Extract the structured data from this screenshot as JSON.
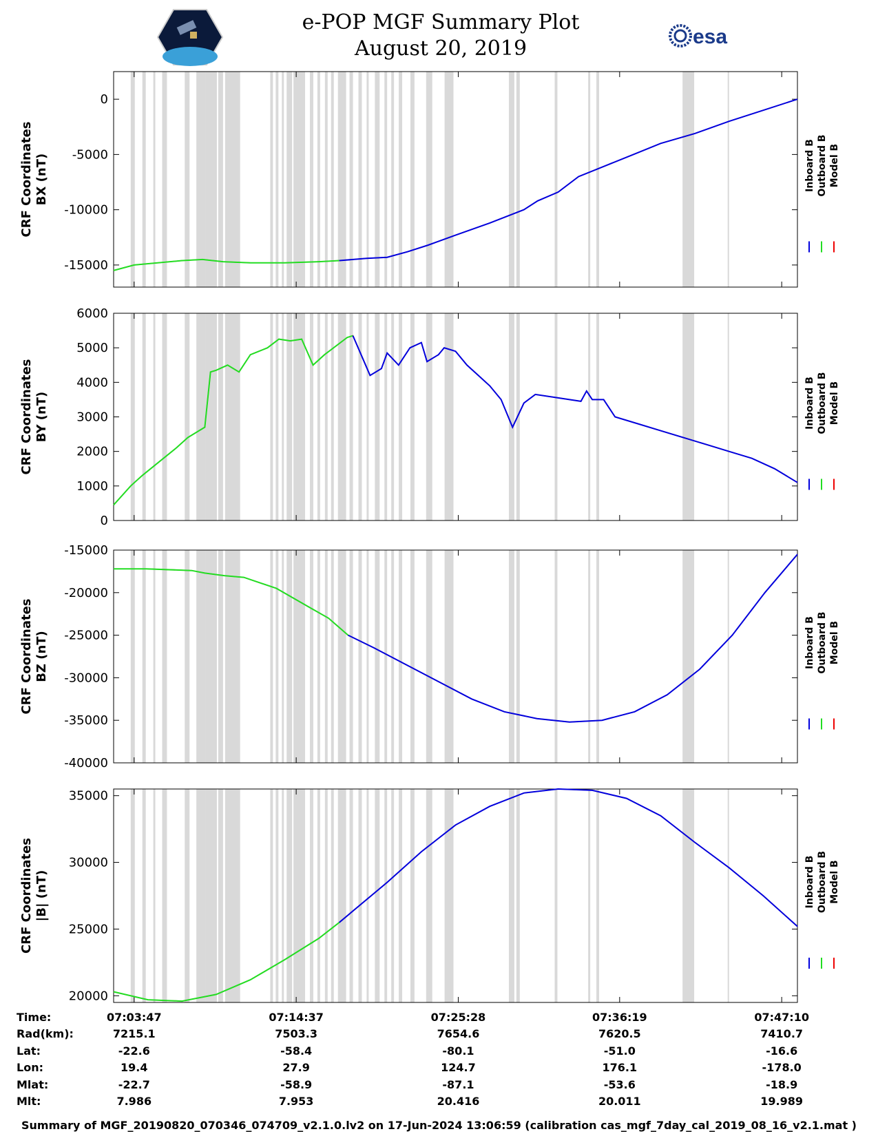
{
  "title": {
    "line1": "e-POP MGF Summary Plot",
    "line2": "August 20, 2019"
  },
  "logos": {
    "left": "cassiope-mission-logo",
    "right_text": "esa"
  },
  "colors": {
    "inboard": "#0000dd",
    "outboard": "#22dd22",
    "model": "#ee0000",
    "gap_shading": "#d9d9d9"
  },
  "legend": {
    "inboard": "Inboard B",
    "outboard": "Outboard B",
    "model": "Model B"
  },
  "chart_data": [
    {
      "type": "line",
      "id": "bx",
      "ylabel_line1": "CRF Coordinates",
      "ylabel_line2": "BX (nT)",
      "ylim": [
        -17000,
        2500
      ],
      "yticks": [
        0,
        -5000,
        -10000,
        -15000
      ],
      "ytick_labels": [
        "0",
        "-5000",
        "-10000",
        "-15000"
      ],
      "t_range": [
        0,
        1
      ]
    },
    {
      "type": "line",
      "id": "by",
      "ylabel_line1": "CRF Coordinates",
      "ylabel_line2": "BY (nT)",
      "ylim": [
        0,
        6000
      ],
      "yticks": [
        6000,
        5000,
        4000,
        3000,
        2000,
        1000,
        0
      ],
      "ytick_labels": [
        "6000",
        "5000",
        "4000",
        "3000",
        "2000",
        "1000",
        "0"
      ]
    },
    {
      "type": "line",
      "id": "bz",
      "ylabel_line1": "CRF Coordinates",
      "ylabel_line2": "BZ (nT)",
      "ylim": [
        -40000,
        -15000
      ],
      "yticks": [
        -15000,
        -20000,
        -25000,
        -30000,
        -35000,
        -40000
      ],
      "ytick_labels": [
        "-15000",
        "-20000",
        "-25000",
        "-30000",
        "-35000",
        "-40000"
      ]
    },
    {
      "type": "line",
      "id": "bmag",
      "ylabel_line1": "CRF Coordinates",
      "ylabel_line2": "|B| (nT)",
      "ylim": [
        19500,
        35500
      ],
      "yticks": [
        35000,
        30000,
        25000,
        20000
      ],
      "ytick_labels": [
        "35000",
        "30000",
        "25000",
        "20000"
      ]
    }
  ],
  "series_points": {
    "bx_outboard": [
      [
        0,
        -15500
      ],
      [
        0.03,
        -15000
      ],
      [
        0.1,
        -14600
      ],
      [
        0.13,
        -14500
      ],
      [
        0.16,
        -14700
      ],
      [
        0.2,
        -14800
      ],
      [
        0.25,
        -14800
      ],
      [
        0.3,
        -14700
      ],
      [
        0.33,
        -14600
      ]
    ],
    "bx_inboard": [
      [
        0.33,
        -14600
      ],
      [
        0.37,
        -14400
      ],
      [
        0.4,
        -14300
      ],
      [
        0.43,
        -13800
      ],
      [
        0.46,
        -13200
      ],
      [
        0.5,
        -12300
      ],
      [
        0.55,
        -11200
      ],
      [
        0.6,
        -10000
      ],
      [
        0.62,
        -9200
      ],
      [
        0.65,
        -8400
      ],
      [
        0.68,
        -7000
      ],
      [
        0.72,
        -6000
      ],
      [
        0.76,
        -5000
      ],
      [
        0.8,
        -4000
      ],
      [
        0.85,
        -3100
      ],
      [
        0.9,
        -2000
      ],
      [
        0.95,
        -1000
      ],
      [
        1,
        0
      ]
    ],
    "by_outboard": [
      [
        0,
        450
      ],
      [
        0.03,
        1000
      ],
      [
        0.05,
        1300
      ],
      [
        0.08,
        1700
      ],
      [
        0.11,
        2100
      ],
      [
        0.13,
        2400
      ],
      [
        0.16,
        2700
      ],
      [
        0.17,
        4300
      ],
      [
        0.18,
        4350
      ],
      [
        0.2,
        4500
      ],
      [
        0.22,
        4300
      ],
      [
        0.24,
        4800
      ],
      [
        0.27,
        5000
      ],
      [
        0.29,
        5250
      ],
      [
        0.31,
        5200
      ],
      [
        0.33,
        5250
      ],
      [
        0.35,
        4500
      ],
      [
        0.37,
        4800
      ],
      [
        0.41,
        5300
      ],
      [
        0.42,
        5350
      ]
    ],
    "by_inboard": [
      [
        0.42,
        5350
      ],
      [
        0.45,
        4200
      ],
      [
        0.47,
        4400
      ],
      [
        0.48,
        4850
      ],
      [
        0.5,
        4500
      ],
      [
        0.52,
        5000
      ],
      [
        0.54,
        5150
      ],
      [
        0.55,
        4600
      ],
      [
        0.57,
        4800
      ],
      [
        0.58,
        5000
      ],
      [
        0.6,
        4900
      ],
      [
        0.62,
        4500
      ],
      [
        0.64,
        4200
      ],
      [
        0.66,
        3900
      ],
      [
        0.68,
        3500
      ],
      [
        0.7,
        2700
      ],
      [
        0.72,
        3400
      ],
      [
        0.74,
        3650
      ],
      [
        0.78,
        3550
      ],
      [
        0.82,
        3450
      ],
      [
        0.83,
        3750
      ],
      [
        0.84,
        3500
      ],
      [
        0.86,
        3500
      ],
      [
        0.88,
        3000
      ],
      [
        0.92,
        2800
      ],
      [
        0.96,
        2600
      ],
      [
        1,
        2400
      ],
      [
        1.04,
        2200
      ],
      [
        1.08,
        2000
      ],
      [
        1.12,
        1800
      ],
      [
        1.16,
        1500
      ],
      [
        1.2,
        1100
      ]
    ],
    "bz_outboard": [
      [
        0,
        -17200
      ],
      [
        0.05,
        -17200
      ],
      [
        0.12,
        -17400
      ],
      [
        0.14,
        -17700
      ],
      [
        0.17,
        -18000
      ],
      [
        0.2,
        -18200
      ],
      [
        0.25,
        -19500
      ],
      [
        0.3,
        -21700
      ],
      [
        0.33,
        -23000
      ],
      [
        0.36,
        -25000
      ]
    ],
    "bz_inboard": [
      [
        0.36,
        -25000
      ],
      [
        0.4,
        -26500
      ],
      [
        0.45,
        -28500
      ],
      [
        0.5,
        -30500
      ],
      [
        0.55,
        -32500
      ],
      [
        0.6,
        -34000
      ],
      [
        0.65,
        -34800
      ],
      [
        0.7,
        -35200
      ],
      [
        0.75,
        -35000
      ],
      [
        0.8,
        -34000
      ],
      [
        0.85,
        -32000
      ],
      [
        0.9,
        -29000
      ],
      [
        0.95,
        -25000
      ],
      [
        1,
        -20000
      ],
      [
        1.05,
        -15500
      ]
    ],
    "bmag_outboard": [
      [
        0,
        20300
      ],
      [
        0.05,
        19700
      ],
      [
        0.1,
        19600
      ],
      [
        0.15,
        20100
      ],
      [
        0.2,
        21200
      ],
      [
        0.25,
        22700
      ],
      [
        0.3,
        24300
      ],
      [
        0.33,
        25500
      ]
    ],
    "bmag_inboard": [
      [
        0.33,
        25500
      ],
      [
        0.4,
        28500
      ],
      [
        0.45,
        30800
      ],
      [
        0.5,
        32800
      ],
      [
        0.55,
        34200
      ],
      [
        0.6,
        35200
      ],
      [
        0.65,
        35500
      ],
      [
        0.7,
        35400
      ],
      [
        0.75,
        34800
      ],
      [
        0.8,
        33500
      ],
      [
        0.85,
        31500
      ],
      [
        0.9,
        29600
      ],
      [
        0.95,
        27500
      ],
      [
        1,
        25200
      ]
    ]
  },
  "time_axis": {
    "labels": [
      "Time:",
      "Rad(km):",
      "Lat:",
      "Lon:",
      "Mlat:",
      "Mlt:"
    ],
    "columns": [
      {
        "time": "07:03:47",
        "rad": "7215.1",
        "lat": "-22.6",
        "lon": "19.4",
        "mlat": "-22.7",
        "mlt": "7.986"
      },
      {
        "time": "07:14:37",
        "rad": "7503.3",
        "lat": "-58.4",
        "lon": "27.9",
        "mlat": "-58.9",
        "mlt": "7.953"
      },
      {
        "time": "07:25:28",
        "rad": "7654.6",
        "lat": "-80.1",
        "lon": "124.7",
        "mlat": "-87.1",
        "mlt": "20.416"
      },
      {
        "time": "07:36:19",
        "rad": "7620.5",
        "lat": "-51.0",
        "lon": "176.1",
        "mlat": "-53.6",
        "mlt": "20.011"
      },
      {
        "time": "07:47:10",
        "rad": "7410.7",
        "lat": "-16.6",
        "lon": "-178.0",
        "mlat": "-18.9",
        "mlt": "19.989"
      }
    ]
  },
  "footer": "Summary of MGF_20190820_070346_074709_v2.1.0.lv2 on 17-Jun-2024 13:06:59 (calibration cas_mgf_7day_cal_2019_08_16_v2.1.mat )"
}
